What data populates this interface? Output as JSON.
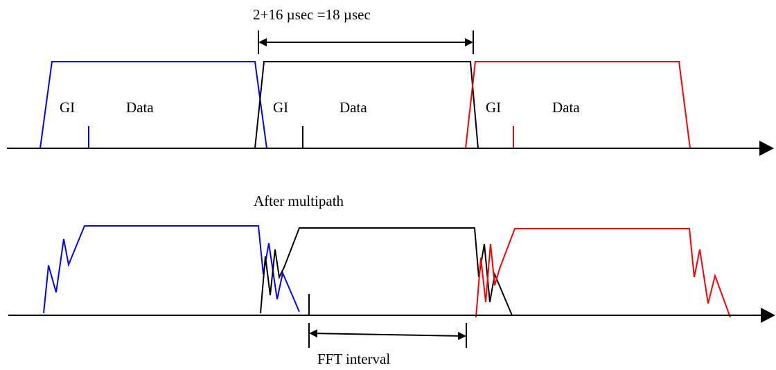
{
  "labels": {
    "duration": "2+16 µsec =18 µsec",
    "gi_1": "GI",
    "data_1": "Data",
    "gi_2": "GI",
    "data_2": "Data",
    "gi_3": "GI",
    "data_3": "Data",
    "after_multipath": "After multipath",
    "fft_interval": "FFT interval"
  },
  "colors": {
    "symbol_1": "#0000ff",
    "symbol_2": "#000000",
    "symbol_3": "#ff0000",
    "axis": "#000000",
    "text": "#000000"
  }
}
